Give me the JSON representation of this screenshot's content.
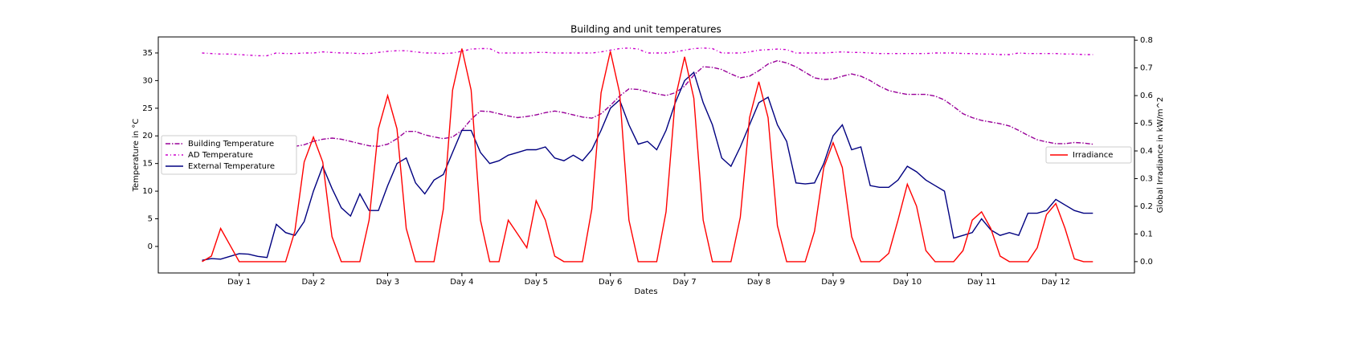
{
  "chart_data": {
    "type": "line",
    "title": "Building and unit temperatures",
    "xlabel": "Dates",
    "ylabel": "Temperature in °C",
    "y2label": "Global Irradiance in kW/m^2",
    "xlim": [
      -0.09,
      13.06
    ],
    "ylim": [
      -4.8,
      37.9
    ],
    "y2lim": [
      -0.041,
      0.812
    ],
    "xticks": [
      {
        "value": 1,
        "label": "Day 1"
      },
      {
        "value": 2,
        "label": "Day 2"
      },
      {
        "value": 3,
        "label": "Day 3"
      },
      {
        "value": 4,
        "label": "Day 4"
      },
      {
        "value": 5,
        "label": "Day 5"
      },
      {
        "value": 6,
        "label": "Day 6"
      },
      {
        "value": 7,
        "label": "Day 7"
      },
      {
        "value": 8,
        "label": "Day 8"
      },
      {
        "value": 9,
        "label": "Day 9"
      },
      {
        "value": 10,
        "label": "Day 10"
      },
      {
        "value": 11,
        "label": "Day 11"
      },
      {
        "value": 12,
        "label": "Day 12"
      }
    ],
    "yticks": [
      0,
      5,
      10,
      15,
      20,
      25,
      30,
      35
    ],
    "y2ticks": [
      {
        "value": 0,
        "label": "0.0"
      },
      0.1,
      0.2,
      0.3,
      0.4,
      0.5,
      0.6,
      0.7,
      0.8
    ],
    "grid": false,
    "legend": "center left",
    "legend2": "center right",
    "x": [
      0.5,
      0.625,
      0.75,
      0.875,
      1,
      1.125,
      1.25,
      1.375,
      1.5,
      1.625,
      1.75,
      1.875,
      2,
      2.125,
      2.25,
      2.375,
      2.5,
      2.625,
      2.75,
      2.875,
      3,
      3.125,
      3.25,
      3.375,
      3.5,
      3.625,
      3.75,
      3.875,
      4,
      4.125,
      4.25,
      4.375,
      4.5,
      4.625,
      4.75,
      4.875,
      5,
      5.125,
      5.25,
      5.375,
      5.5,
      5.625,
      5.75,
      5.875,
      6,
      6.125,
      6.25,
      6.375,
      6.5,
      6.625,
      6.75,
      6.875,
      7,
      7.125,
      7.25,
      7.375,
      7.5,
      7.625,
      7.75,
      7.875,
      8,
      8.125,
      8.25,
      8.375,
      8.5,
      8.625,
      8.75,
      8.875,
      9,
      9.125,
      9.25,
      9.375,
      9.5,
      9.625,
      9.75,
      9.875,
      10,
      10.125,
      10.25,
      10.375,
      10.5,
      10.625,
      10.75,
      10.875,
      11,
      11.125,
      11.25,
      11.375,
      11.5,
      11.625,
      11.75,
      11.875,
      12,
      12.125,
      12.25,
      12.375,
      12.5
    ],
    "series": [
      {
        "name": "Building Temperature",
        "color": "#990099",
        "linestyle": "dashdot",
        "values": [
          18.5,
          18.4,
          18.3,
          18.2,
          18.2,
          18.1,
          18.0,
          18.0,
          18.0,
          18.0,
          18.1,
          18.4,
          19.0,
          19.4,
          19.6,
          19.4,
          19.0,
          18.6,
          18.2,
          18.1,
          18.5,
          19.5,
          20.8,
          20.8,
          20.2,
          19.8,
          19.5,
          19.8,
          21.0,
          23.0,
          24.5,
          24.4,
          24.0,
          23.6,
          23.3,
          23.5,
          23.8,
          24.2,
          24.5,
          24.2,
          23.8,
          23.4,
          23.2,
          24.0,
          25.5,
          27.2,
          28.5,
          28.4,
          28.0,
          27.6,
          27.3,
          27.8,
          29.0,
          31.0,
          32.5,
          32.4,
          32.0,
          31.2,
          30.5,
          30.8,
          31.8,
          33.0,
          33.6,
          33.2,
          32.5,
          31.5,
          30.5,
          30.2,
          30.3,
          30.8,
          31.2,
          30.8,
          30.0,
          29.0,
          28.2,
          27.8,
          27.5,
          27.5,
          27.5,
          27.2,
          26.5,
          25.3,
          24.0,
          23.3,
          22.8,
          22.5,
          22.2,
          21.8,
          21.0,
          20.1,
          19.3,
          18.9,
          18.6,
          18.6,
          18.8,
          18.7,
          18.5
        ]
      },
      {
        "name": "AD Temperature",
        "color": "#cc00cc",
        "linestyle": "loose-dashdot",
        "values": [
          35.0,
          34.9,
          34.8,
          34.8,
          34.7,
          34.6,
          34.5,
          34.5,
          35.0,
          34.9,
          34.9,
          35.0,
          35.0,
          35.2,
          35.1,
          35.0,
          35.0,
          34.9,
          34.9,
          35.1,
          35.3,
          35.4,
          35.4,
          35.2,
          35.0,
          35.0,
          34.9,
          35.0,
          35.3,
          35.7,
          35.8,
          35.8,
          35.0,
          35.0,
          35.0,
          35.0,
          35.1,
          35.1,
          35.0,
          35.0,
          35.0,
          35.0,
          35.0,
          35.2,
          35.5,
          35.8,
          35.9,
          35.7,
          35.0,
          35.0,
          35.0,
          35.2,
          35.5,
          35.8,
          35.9,
          35.8,
          35.0,
          35.0,
          35.0,
          35.2,
          35.5,
          35.6,
          35.7,
          35.6,
          35.0,
          35.0,
          35.0,
          35.0,
          35.1,
          35.2,
          35.1,
          35.1,
          35.0,
          34.9,
          34.9,
          34.9,
          34.9,
          34.9,
          34.9,
          35.0,
          35.0,
          35.0,
          34.9,
          34.9,
          34.8,
          34.8,
          34.7,
          34.7,
          35.0,
          34.9,
          34.9,
          34.9,
          34.9,
          34.8,
          34.8,
          34.7,
          34.7
        ]
      },
      {
        "name": "External Temperature",
        "color": "#000080",
        "linestyle": "solid",
        "values": [
          -2.5,
          -2.2,
          -2.3,
          -1.8,
          -1.3,
          -1.4,
          -1.8,
          -2.0,
          4.0,
          2.5,
          2.0,
          4.5,
          10,
          14.5,
          10.5,
          7,
          5.5,
          9.5,
          6.5,
          6.5,
          11,
          15,
          16,
          11.5,
          9.5,
          12,
          13,
          17,
          21,
          21,
          17,
          15,
          15.5,
          16.5,
          17,
          17.5,
          17.5,
          18,
          16,
          15.5,
          16.5,
          15.5,
          17.5,
          21,
          25,
          26.5,
          22,
          18.5,
          19,
          17.5,
          21,
          26,
          30,
          31.5,
          26,
          22,
          16,
          14.5,
          18,
          22,
          26,
          27,
          22,
          19,
          11.5,
          11.3,
          11.5,
          15,
          20,
          22,
          17.5,
          18,
          11,
          10.7,
          10.7,
          12,
          14.5,
          13.5,
          12,
          11,
          10,
          1.5,
          2,
          2.5,
          5,
          3,
          2,
          2.5,
          2,
          6,
          6,
          6.5,
          8.5,
          7.5,
          6.5,
          6,
          6
        ]
      },
      {
        "name": "Irradiance",
        "color": "#ff0000",
        "linestyle": "solid",
        "axis": "y2",
        "values": [
          0,
          0.02,
          0.12,
          0.06,
          0,
          0,
          0,
          0,
          0,
          0,
          0.11,
          0.36,
          0.45,
          0.36,
          0.09,
          0,
          0,
          0,
          0.15,
          0.48,
          0.6,
          0.48,
          0.12,
          0,
          0,
          0,
          0.19,
          0.62,
          0.77,
          0.62,
          0.15,
          0,
          0,
          0.15,
          0.1,
          0.05,
          0.22,
          0.15,
          0.02,
          0,
          0,
          0,
          0.19,
          0.61,
          0.76,
          0.61,
          0.15,
          0,
          0,
          0,
          0.18,
          0.59,
          0.74,
          0.59,
          0.15,
          0,
          0,
          0,
          0.16,
          0.52,
          0.65,
          0.52,
          0.13,
          0,
          0,
          0,
          0.11,
          0.34,
          0.43,
          0.34,
          0.09,
          0,
          0,
          0,
          0.03,
          0.15,
          0.28,
          0.2,
          0.04,
          0,
          0,
          0,
          0.04,
          0.15,
          0.18,
          0.12,
          0.02,
          0,
          0,
          0,
          0.05,
          0.17,
          0.21,
          0.12,
          0.01,
          0,
          0
        ]
      }
    ]
  }
}
